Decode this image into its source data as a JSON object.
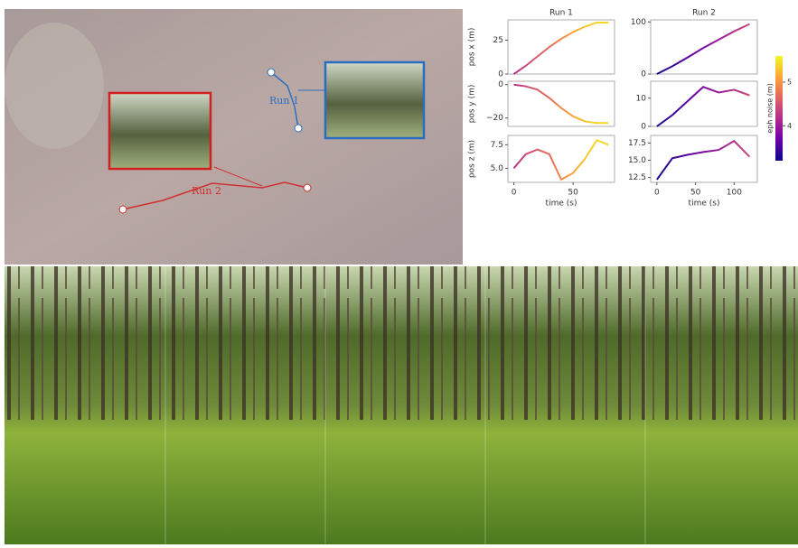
{
  "map": {
    "labels": [
      "Run 1",
      "Run 2"
    ]
  },
  "colorbar": {
    "label": "eph noise (m)",
    "colormap": "plasma",
    "lim": [
      3.2,
      5.6
    ],
    "ticks": [
      4,
      5
    ]
  },
  "chart_data": [
    {
      "type": "line",
      "title": "Run 1",
      "ylabel": "pos x (m)",
      "x": [
        0,
        10,
        20,
        30,
        40,
        50,
        60,
        70,
        80
      ],
      "xlim": [
        -5,
        85
      ],
      "ylim": [
        0,
        40
      ],
      "yticks": [
        0,
        25
      ],
      "series": [
        {
          "values": [
            0,
            6,
            13,
            20,
            26,
            31,
            35,
            38,
            38
          ],
          "eph": [
            4.2,
            4.4,
            4.6,
            4.7,
            4.9,
            5.1,
            5.3,
            5.4,
            5.4
          ]
        }
      ]
    },
    {
      "type": "line",
      "title": "Run 2",
      "ylabel": null,
      "x": [
        0,
        20,
        40,
        60,
        80,
        100,
        120
      ],
      "xlim": [
        -8,
        130
      ],
      "ylim": [
        0,
        104
      ],
      "yticks": [
        0,
        100
      ],
      "series": [
        {
          "values": [
            0,
            15,
            32,
            50,
            66,
            82,
            96
          ],
          "eph": [
            3.3,
            3.4,
            3.6,
            3.8,
            4.0,
            4.2,
            4.4
          ]
        }
      ]
    },
    {
      "type": "line",
      "ylabel": "pos y (m)",
      "x": [
        0,
        10,
        20,
        30,
        40,
        50,
        60,
        70,
        80
      ],
      "xlim": [
        -5,
        85
      ],
      "ylim": [
        -25,
        2
      ],
      "yticks": [
        {
          "value": -20,
          "label": "−20"
        },
        0
      ],
      "series": [
        {
          "values": [
            0,
            -1,
            -3,
            -8,
            -14,
            -19,
            -22,
            -23,
            -23
          ],
          "eph": [
            4.2,
            4.4,
            4.6,
            4.7,
            4.9,
            5.1,
            5.3,
            5.4,
            5.4
          ]
        }
      ]
    },
    {
      "type": "line",
      "x": [
        0,
        20,
        40,
        60,
        80,
        100,
        120
      ],
      "xlim": [
        -8,
        130
      ],
      "ylim": [
        0,
        16
      ],
      "yticks": [
        0,
        10
      ],
      "series": [
        {
          "values": [
            0,
            4,
            9,
            14,
            12,
            13,
            11
          ],
          "eph": [
            3.3,
            3.4,
            3.6,
            3.8,
            4.0,
            4.2,
            4.4
          ]
        }
      ]
    },
    {
      "type": "line",
      "ylabel": "pos z (m)",
      "xlabel": "time (s)",
      "x": [
        0,
        10,
        20,
        30,
        40,
        50,
        60,
        70,
        80
      ],
      "xlim": [
        -5,
        85
      ],
      "ylim": [
        3.5,
        8.5
      ],
      "yticks": [
        {
          "value": 5,
          "label": "5.0"
        },
        {
          "value": 7.5,
          "label": "7.5"
        }
      ],
      "xticks": [
        0,
        50
      ],
      "series": [
        {
          "values": [
            5.0,
            6.5,
            7.0,
            6.5,
            3.8,
            4.5,
            6.0,
            8.0,
            7.5
          ],
          "eph": [
            4.2,
            4.4,
            4.6,
            4.7,
            4.9,
            5.1,
            5.3,
            5.4,
            5.4
          ]
        }
      ]
    },
    {
      "type": "line",
      "xlabel": "time (s)",
      "x": [
        0,
        20,
        40,
        60,
        80,
        100,
        120
      ],
      "xlim": [
        -8,
        130
      ],
      "ylim": [
        11.8,
        18.6
      ],
      "yticks": [
        {
          "value": 12.5,
          "label": "12.5"
        },
        {
          "value": 15,
          "label": "15.0"
        },
        {
          "value": 17.5,
          "label": "17.5"
        }
      ],
      "xticks": [
        0,
        50,
        100
      ],
      "series": [
        {
          "values": [
            12.2,
            15.3,
            15.8,
            16.2,
            16.5,
            17.8,
            15.5
          ],
          "eph": [
            3.3,
            3.4,
            3.6,
            3.8,
            4.0,
            4.2,
            4.4
          ]
        }
      ]
    }
  ]
}
